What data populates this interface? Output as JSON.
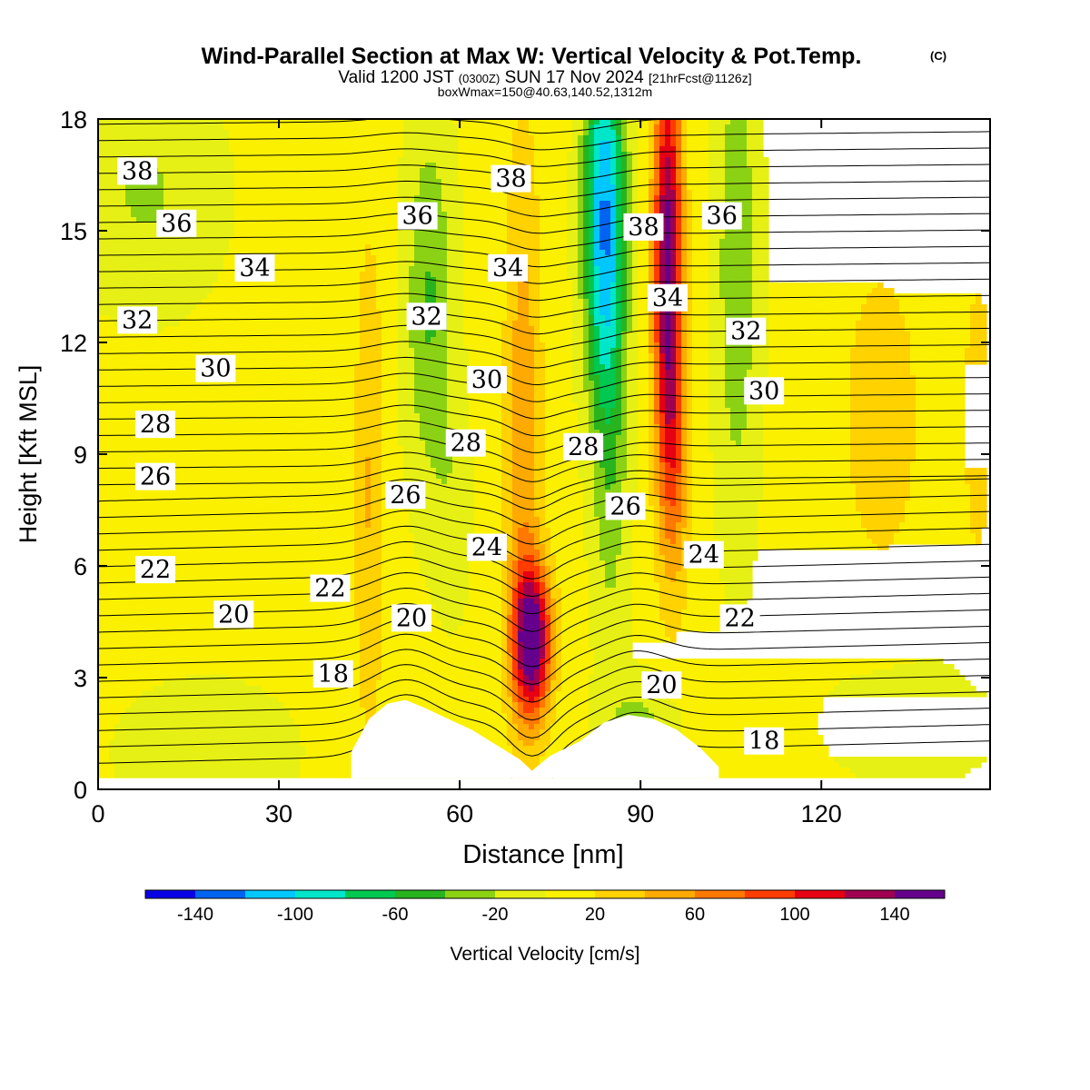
{
  "header": {
    "title": "Wind-Parallel Section at Max W: Vertical Velocity & Pot.Temp.",
    "copyright": "(C)",
    "valid_prefix": "Valid 1200 JST",
    "valid_utc": "(0300Z)",
    "valid_date": "SUN 17 Nov 2024",
    "forecast_info": "[21hrFcst@1126z]",
    "box_info": "boxWmax=150@40.63,140.52,1312m"
  },
  "chart_data": {
    "type": "contour",
    "xlabel": "Distance [nm]",
    "ylabel": "Height [Kft MSL]",
    "xlim": [
      0,
      148
    ],
    "ylim": [
      0,
      18
    ],
    "xticks": [
      0,
      30,
      60,
      90,
      120
    ],
    "yticks": [
      0,
      3,
      6,
      9,
      12,
      15,
      18
    ],
    "filled_field": "Vertical Velocity [cm/s]",
    "contour_field": "Potential Temperature",
    "colorbar": {
      "label": "Vertical Velocity [cm/s]",
      "tick_labels": [
        "-140",
        "-100",
        "-60",
        "-20",
        "20",
        "60",
        "100",
        "140"
      ],
      "bounds": [
        -160,
        -140,
        -120,
        -100,
        -80,
        -60,
        -40,
        -20,
        0,
        20,
        40,
        60,
        80,
        100,
        120,
        140,
        160
      ],
      "colors": [
        "#0a00e6",
        "#0064f0",
        "#00c8ff",
        "#00e6c8",
        "#00c850",
        "#28b41e",
        "#8cd214",
        "#e6f014",
        "#faf000",
        "#ffd200",
        "#ffaa00",
        "#ff7800",
        "#ff3c00",
        "#e60014",
        "#a00050",
        "#64008c"
      ]
    },
    "contour_labels": [
      {
        "text": "38",
        "x": 6.5,
        "y": 16.6
      },
      {
        "text": "36",
        "x": 13,
        "y": 15.2
      },
      {
        "text": "34",
        "x": 26,
        "y": 14.0
      },
      {
        "text": "32",
        "x": 6.5,
        "y": 12.6
      },
      {
        "text": "30",
        "x": 19.5,
        "y": 11.3
      },
      {
        "text": "28",
        "x": 9.5,
        "y": 9.8
      },
      {
        "text": "26",
        "x": 9.5,
        "y": 8.4
      },
      {
        "text": "22",
        "x": 9.5,
        "y": 5.9
      },
      {
        "text": "20",
        "x": 22.5,
        "y": 4.7
      },
      {
        "text": "22",
        "x": 38.5,
        "y": 5.4
      },
      {
        "text": "18",
        "x": 39,
        "y": 3.1
      },
      {
        "text": "20",
        "x": 52,
        "y": 4.6
      },
      {
        "text": "26",
        "x": 51,
        "y": 7.9
      },
      {
        "text": "28",
        "x": 61,
        "y": 9.3
      },
      {
        "text": "30",
        "x": 64.5,
        "y": 11.0
      },
      {
        "text": "32",
        "x": 54.5,
        "y": 12.7
      },
      {
        "text": "34",
        "x": 68,
        "y": 14.0
      },
      {
        "text": "36",
        "x": 53,
        "y": 15.4
      },
      {
        "text": "38",
        "x": 68.5,
        "y": 16.4
      },
      {
        "text": "28",
        "x": 80.5,
        "y": 9.2
      },
      {
        "text": "26",
        "x": 87.5,
        "y": 7.6
      },
      {
        "text": "38",
        "x": 90.5,
        "y": 15.1
      },
      {
        "text": "34",
        "x": 94.5,
        "y": 13.2
      },
      {
        "text": "36",
        "x": 103.5,
        "y": 15.4
      },
      {
        "text": "32",
        "x": 107.5,
        "y": 12.3
      },
      {
        "text": "30",
        "x": 110.5,
        "y": 10.7
      },
      {
        "text": "24",
        "x": 64.5,
        "y": 6.5
      },
      {
        "text": "24",
        "x": 100.5,
        "y": 6.3
      },
      {
        "text": "22",
        "x": 106.5,
        "y": 4.6
      },
      {
        "text": "20",
        "x": 93.5,
        "y": 2.8
      },
      {
        "text": "18",
        "x": 110.5,
        "y": 1.3
      }
    ],
    "terrain_profile": [
      [
        42,
        1.0
      ],
      [
        45,
        1.9
      ],
      [
        48,
        2.3
      ],
      [
        51,
        2.4
      ],
      [
        54,
        2.2
      ],
      [
        58,
        1.9
      ],
      [
        62,
        1.6
      ],
      [
        66,
        1.2
      ],
      [
        70,
        0.8
      ],
      [
        72,
        0.5
      ],
      [
        75,
        0.9
      ],
      [
        80,
        1.3
      ],
      [
        84,
        1.8
      ],
      [
        88,
        2.0
      ],
      [
        92,
        1.9
      ],
      [
        96,
        1.6
      ],
      [
        100,
        1.1
      ],
      [
        103,
        0.6
      ]
    ]
  }
}
